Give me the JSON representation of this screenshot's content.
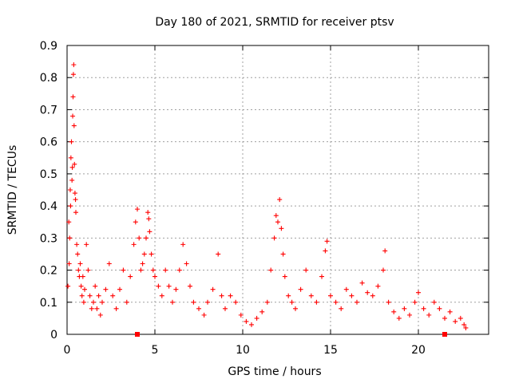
{
  "chart_data": {
    "type": "scatter",
    "title": "Day 180 of 2021, SRMTID for receiver ptsv",
    "xlabel": "GPS time / hours",
    "ylabel": "SRMTID / TECUs",
    "xlim": [
      0,
      24
    ],
    "ylim": [
      0,
      0.9
    ],
    "x_ticks": [
      0,
      5,
      10,
      15,
      20
    ],
    "x_tick_labels": [
      "0",
      "5",
      "10",
      "15",
      "20"
    ],
    "y_ticks": [
      0,
      0.1,
      0.2,
      0.3,
      0.4,
      0.5,
      0.6,
      0.7,
      0.8,
      0.9
    ],
    "y_tick_labels": [
      "0",
      "0.1",
      "0.2",
      "0.3",
      "0.4",
      "0.5",
      "0.6",
      "0.7",
      "0.8",
      "0.9"
    ],
    "grid": true,
    "marker": "+",
    "color": "#ff0000",
    "series": [
      {
        "name": "SRMTID",
        "points": [
          [
            0.05,
            0.15
          ],
          [
            0.1,
            0.35
          ],
          [
            0.12,
            0.22
          ],
          [
            0.15,
            0.3
          ],
          [
            0.18,
            0.45
          ],
          [
            0.2,
            0.4
          ],
          [
            0.22,
            0.55
          ],
          [
            0.25,
            0.6
          ],
          [
            0.28,
            0.48
          ],
          [
            0.3,
            0.52
          ],
          [
            0.32,
            0.68
          ],
          [
            0.34,
            0.74
          ],
          [
            0.36,
            0.81
          ],
          [
            0.38,
            0.84
          ],
          [
            0.4,
            0.65
          ],
          [
            0.42,
            0.53
          ],
          [
            0.45,
            0.44
          ],
          [
            0.48,
            0.42
          ],
          [
            0.5,
            0.38
          ],
          [
            0.55,
            0.28
          ],
          [
            0.6,
            0.25
          ],
          [
            0.65,
            0.2
          ],
          [
            0.7,
            0.18
          ],
          [
            0.75,
            0.22
          ],
          [
            0.8,
            0.15
          ],
          [
            0.85,
            0.12
          ],
          [
            0.9,
            0.18
          ],
          [
            0.95,
            0.1
          ],
          [
            1.0,
            0.14
          ],
          [
            1.1,
            0.28
          ],
          [
            1.2,
            0.2
          ],
          [
            1.3,
            0.12
          ],
          [
            1.4,
            0.08
          ],
          [
            1.5,
            0.1
          ],
          [
            1.6,
            0.15
          ],
          [
            1.7,
            0.08
          ],
          [
            1.8,
            0.12
          ],
          [
            1.9,
            0.06
          ],
          [
            2.0,
            0.1
          ],
          [
            2.2,
            0.14
          ],
          [
            2.4,
            0.22
          ],
          [
            2.6,
            0.12
          ],
          [
            2.8,
            0.08
          ],
          [
            3.0,
            0.14
          ],
          [
            3.2,
            0.2
          ],
          [
            3.4,
            0.1
          ],
          [
            3.6,
            0.18
          ],
          [
            3.8,
            0.28
          ],
          [
            3.9,
            0.35
          ],
          [
            4.0,
            0.39
          ],
          [
            4.1,
            0.3
          ],
          [
            4.2,
            0.2
          ],
          [
            4.3,
            0.22
          ],
          [
            4.4,
            0.25
          ],
          [
            4.5,
            0.3
          ],
          [
            4.6,
            0.38
          ],
          [
            4.65,
            0.36
          ],
          [
            4.7,
            0.32
          ],
          [
            4.8,
            0.25
          ],
          [
            4.9,
            0.2
          ],
          [
            5.0,
            0.18
          ],
          [
            5.2,
            0.15
          ],
          [
            5.4,
            0.12
          ],
          [
            5.6,
            0.2
          ],
          [
            5.8,
            0.15
          ],
          [
            6.0,
            0.1
          ],
          [
            6.2,
            0.14
          ],
          [
            6.4,
            0.2
          ],
          [
            6.6,
            0.28
          ],
          [
            6.8,
            0.22
          ],
          [
            7.0,
            0.15
          ],
          [
            7.2,
            0.1
          ],
          [
            7.5,
            0.08
          ],
          [
            7.8,
            0.06
          ],
          [
            8.0,
            0.1
          ],
          [
            8.3,
            0.14
          ],
          [
            8.6,
            0.25
          ],
          [
            8.8,
            0.12
          ],
          [
            9.0,
            0.08
          ],
          [
            9.3,
            0.12
          ],
          [
            9.6,
            0.1
          ],
          [
            9.9,
            0.06
          ],
          [
            10.2,
            0.04
          ],
          [
            10.5,
            0.03
          ],
          [
            10.8,
            0.05
          ],
          [
            11.1,
            0.07
          ],
          [
            11.4,
            0.1
          ],
          [
            11.6,
            0.2
          ],
          [
            11.8,
            0.3
          ],
          [
            11.9,
            0.37
          ],
          [
            12.0,
            0.35
          ],
          [
            12.1,
            0.42
          ],
          [
            12.2,
            0.33
          ],
          [
            12.3,
            0.25
          ],
          [
            12.4,
            0.18
          ],
          [
            12.6,
            0.12
          ],
          [
            12.8,
            0.1
          ],
          [
            13.0,
            0.08
          ],
          [
            13.3,
            0.14
          ],
          [
            13.6,
            0.2
          ],
          [
            13.9,
            0.12
          ],
          [
            14.2,
            0.1
          ],
          [
            14.5,
            0.18
          ],
          [
            14.7,
            0.26
          ],
          [
            14.8,
            0.29
          ],
          [
            15.0,
            0.12
          ],
          [
            15.3,
            0.1
          ],
          [
            15.6,
            0.08
          ],
          [
            15.9,
            0.14
          ],
          [
            16.2,
            0.12
          ],
          [
            16.5,
            0.1
          ],
          [
            16.8,
            0.16
          ],
          [
            17.1,
            0.13
          ],
          [
            17.4,
            0.12
          ],
          [
            17.7,
            0.15
          ],
          [
            18.0,
            0.2
          ],
          [
            18.1,
            0.26
          ],
          [
            18.3,
            0.1
          ],
          [
            18.6,
            0.07
          ],
          [
            18.9,
            0.05
          ],
          [
            19.2,
            0.08
          ],
          [
            19.5,
            0.06
          ],
          [
            19.8,
            0.1
          ],
          [
            20.0,
            0.13
          ],
          [
            20.3,
            0.08
          ],
          [
            20.6,
            0.06
          ],
          [
            20.9,
            0.1
          ],
          [
            21.2,
            0.08
          ],
          [
            21.5,
            0.05
          ],
          [
            21.8,
            0.07
          ],
          [
            22.1,
            0.04
          ],
          [
            22.4,
            0.05
          ],
          [
            22.6,
            0.03
          ],
          [
            22.7,
            0.02
          ]
        ]
      },
      {
        "name": "zero markers",
        "points": [
          [
            4.0,
            0.0
          ],
          [
            21.5,
            0.0
          ]
        ]
      }
    ]
  }
}
